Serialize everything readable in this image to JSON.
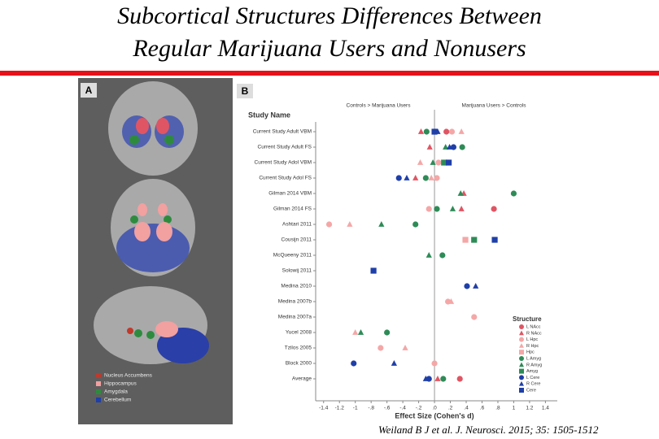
{
  "title": [
    "Subcortical Structures Differences Between",
    "Regular Marijuana Users and Nonusers"
  ],
  "citation": "Weiland B J et al. J. Neurosci. 2015; 35: 1505-1512",
  "panel_a": {
    "label": "A",
    "legend": [
      {
        "label": "Nucleus Accumbens",
        "color": "#c0392b"
      },
      {
        "label": "Hippocampus",
        "color": "#f2a0a0"
      },
      {
        "label": "Amygdala",
        "color": "#2e8b3e"
      },
      {
        "label": "Cerebellum",
        "color": "#1f3fa8"
      }
    ]
  },
  "chart_data": {
    "type": "scatter",
    "panel_label": "B",
    "y_header": "Study Name",
    "annotations": [
      "Controls > Marijuana Users",
      "Marijuana Users > Controls"
    ],
    "xlabel": "Effect Size (Cohen's d)",
    "legend_title": "Structure",
    "categories": [
      "Current Study Adult VBM",
      "Current Study Adult FS",
      "Current Study Adol VBM",
      "Current Study Adol FS",
      "Gilman 2014 VBM",
      "Gilman 2014 FS",
      "Ashtari 2011",
      "Cousijn 2011",
      "McQueeny 2011",
      "Solowij 2011",
      "Medina 2010",
      "Medina 2007b",
      "Medina 2007a",
      "Yucel 2008",
      "Tzilos 2005",
      "Block 2000",
      "Average"
    ],
    "xlim": [
      -1.5,
      1.55
    ],
    "xticks": [
      -1.4,
      -1.2,
      -1.0,
      {
        "value": -0.8,
        "label": "-.8"
      },
      {
        "value": -0.6,
        "label": "-.6"
      },
      {
        "value": -0.4,
        "label": "-.4"
      },
      {
        "value": -0.2,
        "label": "-.2"
      },
      {
        "value": 0,
        "label": ".0"
      },
      {
        "value": 0.2,
        "label": ".2"
      },
      {
        "value": 0.4,
        "label": ".4"
      },
      {
        "value": 0.6,
        "label": ".6"
      },
      {
        "value": 0.8,
        "label": ".8"
      },
      1.0,
      1.2,
      1.4
    ],
    "series": [
      {
        "name": "L NAcc",
        "color": "#e05563",
        "marker": "circle",
        "values": [
          0.15,
          null,
          null,
          null,
          null,
          0.75,
          null,
          null,
          null,
          null,
          null,
          null,
          null,
          null,
          null,
          null,
          0.32
        ]
      },
      {
        "name": "R NAcc",
        "color": "#e05563",
        "marker": "triangle",
        "values": [
          -0.17,
          -0.06,
          null,
          -0.24,
          0.37,
          0.34,
          null,
          null,
          null,
          null,
          null,
          null,
          null,
          null,
          null,
          null,
          0.04
        ]
      },
      {
        "name": "L Hpc",
        "color": "#f4a7a7",
        "marker": "circle",
        "values": [
          0.22,
          null,
          0.05,
          0.03,
          null,
          -0.07,
          -1.33,
          null,
          null,
          null,
          null,
          0.17,
          0.5,
          null,
          -0.68,
          0,
          null
        ]
      },
      {
        "name": "R Hpc",
        "color": "#f4a7a7",
        "marker": "triangle",
        "values": [
          0.34,
          null,
          -0.18,
          -0.04,
          null,
          null,
          -1.07,
          null,
          null,
          null,
          null,
          0.21,
          null,
          -1.0,
          -0.37,
          null,
          null
        ]
      },
      {
        "name": "Hpc",
        "color": "#f4a7a7",
        "marker": "square",
        "values": [
          null,
          null,
          null,
          null,
          null,
          null,
          null,
          0.39,
          null,
          null,
          null,
          null,
          null,
          null,
          null,
          null,
          null
        ]
      },
      {
        "name": "L Amyg",
        "color": "#2e8b57",
        "marker": "circle",
        "values": [
          -0.1,
          0.35,
          null,
          -0.11,
          1.0,
          0.03,
          -0.24,
          null,
          0.1,
          null,
          null,
          null,
          null,
          -0.6,
          null,
          null,
          0.11
        ]
      },
      {
        "name": "R Amyg",
        "color": "#2e8b57",
        "marker": "triangle",
        "values": [
          null,
          0.14,
          -0.02,
          null,
          0.33,
          0.23,
          -0.67,
          null,
          -0.07,
          null,
          null,
          null,
          null,
          -0.93,
          null,
          null,
          null
        ]
      },
      {
        "name": "Amyg",
        "color": "#2e8b57",
        "marker": "square",
        "values": [
          null,
          null,
          0.12,
          null,
          null,
          null,
          null,
          0.5,
          null,
          null,
          null,
          null,
          null,
          null,
          null,
          null,
          null
        ]
      },
      {
        "name": "L Cere",
        "color": "#1f3fa8",
        "marker": "circle",
        "values": [
          null,
          0.24,
          null,
          -0.45,
          null,
          null,
          null,
          null,
          null,
          null,
          0.41,
          null,
          null,
          null,
          null,
          -1.02,
          -0.07
        ]
      },
      {
        "name": "R Cere",
        "color": "#1f3fa8",
        "marker": "triangle",
        "values": [
          0.04,
          0.19,
          null,
          -0.35,
          null,
          null,
          null,
          null,
          null,
          null,
          0.52,
          null,
          null,
          null,
          null,
          -0.51,
          -0.11
        ]
      },
      {
        "name": "Cere",
        "color": "#1f3fa8",
        "marker": "square",
        "values": [
          0,
          null,
          0.18,
          null,
          null,
          null,
          null,
          0.76,
          null,
          -0.77,
          null,
          null,
          null,
          null,
          null,
          null,
          null
        ]
      }
    ]
  }
}
